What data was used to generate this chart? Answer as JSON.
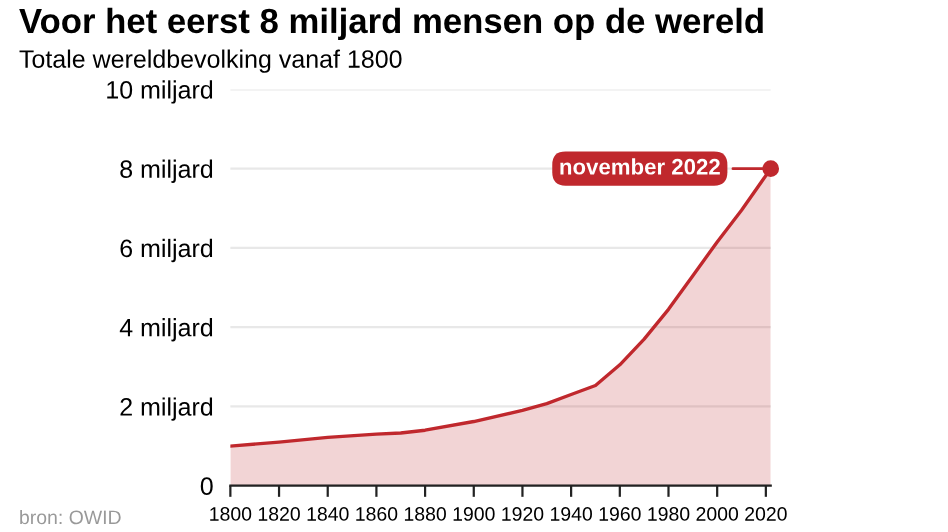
{
  "chart_data": {
    "type": "area",
    "title": "Voor het eerst 8 miljard mensen op de wereld",
    "subtitle": "Totale wereldbevolking vanaf 1800",
    "x": [
      1800,
      1820,
      1840,
      1860,
      1870,
      1880,
      1900,
      1920,
      1930,
      1940,
      1950,
      1960,
      1970,
      1980,
      1990,
      2000,
      2010,
      2022
    ],
    "series": [
      {
        "color": "#c0282d",
        "values": [
          1.0,
          1.1,
          1.22,
          1.3,
          1.33,
          1.4,
          1.62,
          1.9,
          2.07,
          2.3,
          2.53,
          3.05,
          3.7,
          4.45,
          5.3,
          6.15,
          6.95,
          8.0
        ]
      }
    ],
    "xlim": [
      1800,
      2022
    ],
    "xticks": [
      1800,
      1820,
      1840,
      1860,
      1880,
      1900,
      1920,
      1940,
      1960,
      1980,
      2000,
      2020
    ],
    "ylim": [
      0,
      10
    ],
    "yticks": [
      0,
      {
        "value": 2,
        "label": "2 miljard"
      },
      {
        "value": 4,
        "label": "4 miljard"
      },
      {
        "value": 6,
        "label": "6 miljard"
      },
      {
        "value": 8,
        "label": "8 miljard"
      },
      {
        "value": 10,
        "label": "10 miljard"
      }
    ],
    "grid": "y",
    "legend": false,
    "annotations": [
      {
        "text": "november 2022",
        "x": 2022,
        "y": 8
      },
      "bron: OWID"
    ]
  }
}
